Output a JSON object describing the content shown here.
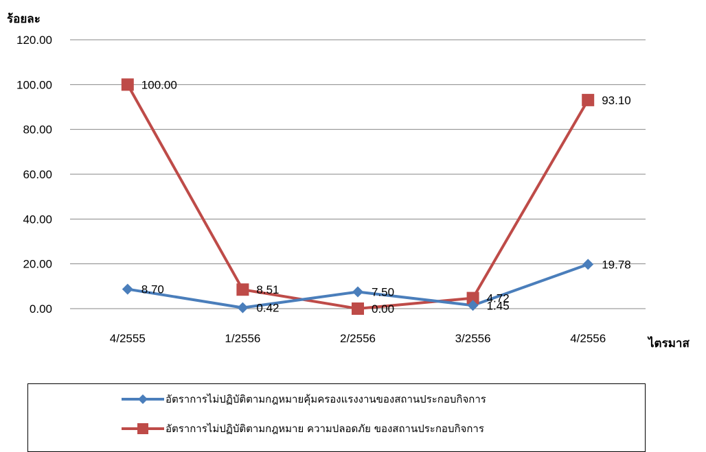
{
  "chart_data": {
    "type": "line",
    "ylabel": "ร้อยละ",
    "xlabel": "ไตรมาส",
    "categories": [
      "4/2555",
      "1/2556",
      "2/2556",
      "3/2556",
      "4/2556"
    ],
    "ylim": [
      0,
      120
    ],
    "yticks": [
      "0.00",
      "20.00",
      "40.00",
      "60.00",
      "80.00",
      "100.00",
      "120.00"
    ],
    "grid": true,
    "legend_position": "bottom",
    "series": [
      {
        "name": "อัตราการไม่ปฏิบัติตามกฎหมายคุ้มครองแรงงานของสถานประกอบกิจการ",
        "values": [
          8.7,
          0.42,
          7.5,
          1.45,
          19.78
        ],
        "labels": [
          "8.70",
          "0.42",
          "7.50",
          "1.45",
          "19.78"
        ],
        "color": "#4A7EBB",
        "marker": "diamond"
      },
      {
        "name": "อัตราการไม่ปฏิบัติตามกฎหมาย ความปลอดภัย ของสถานประกอบกิจการ",
        "values": [
          100.0,
          8.51,
          0.0,
          4.72,
          93.1
        ],
        "labels": [
          "100.00",
          "8.51",
          "0.00",
          "4.72",
          "93.10"
        ],
        "color": "#BE4B48",
        "marker": "square"
      }
    ]
  }
}
